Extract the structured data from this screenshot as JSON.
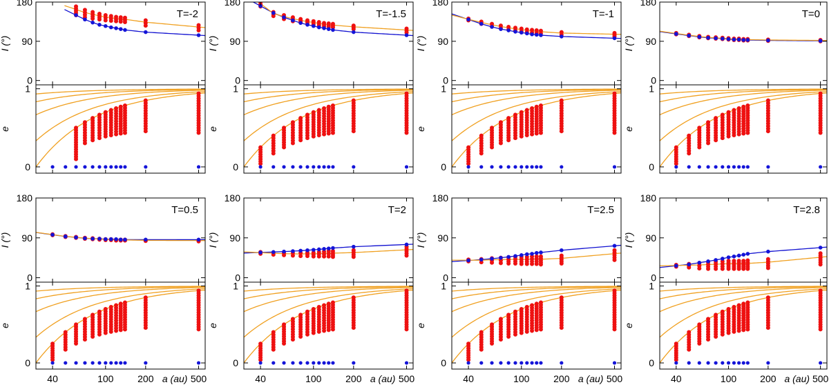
{
  "chart_data": {
    "type": "scatter",
    "colors": {
      "blue": "#1414d8",
      "red": "#ee1111",
      "orange": "#f0a020"
    },
    "shared": {
      "xscale": "log",
      "xlim": [
        30,
        560
      ],
      "xticks": [
        40,
        100,
        200,
        500
      ],
      "xtick_labels": [
        "40",
        "100",
        "200",
        "500"
      ],
      "xlabel": "a (au)",
      "top_ylabel": "I (°)",
      "top_ylim": [
        -10,
        180
      ],
      "top_yticks": [
        0,
        90,
        180
      ],
      "top_ytick_labels": [
        "0",
        "90",
        "180"
      ],
      "bottom_ylabel": "e",
      "bottom_ylim": [
        -0.08,
        1.05
      ],
      "bottom_yticks": [
        0,
        1
      ],
      "bottom_ytick_labels": [
        "0",
        "1"
      ],
      "a_points": [
        40,
        50,
        60,
        70,
        80,
        90,
        100,
        110,
        120,
        130,
        140,
        200,
        500
      ],
      "e_circular": 0,
      "orange_envelope_q": [
        30,
        20,
        10,
        5,
        2
      ]
    },
    "panels": [
      {
        "label": "T=-2",
        "e_start_index": 2,
        "blue_I": [
          null,
          null,
          150,
          140,
          133,
          128,
          125,
          122,
          120,
          118,
          116,
          111,
          104
        ],
        "red_I": [
          null,
          null,
          [
            150,
            170
          ],
          [
            145,
            162
          ],
          [
            142,
            157
          ],
          [
            140,
            153
          ],
          [
            138,
            150
          ],
          [
            137,
            148
          ],
          [
            136,
            146
          ],
          [
            135,
            145
          ],
          [
            134,
            144
          ],
          [
            126,
            138
          ],
          [
            115,
            127
          ]
        ]
      },
      {
        "label": "T=-1.5",
        "e_start_index": 0,
        "blue_I": [
          171,
          155,
          145,
          138,
          132,
          128,
          125,
          122,
          120,
          118,
          116,
          111,
          104
        ],
        "red_I": [
          [
            170,
            180
          ],
          [
            148,
            157
          ],
          [
            141,
            150
          ],
          [
            136,
            145
          ],
          [
            133,
            141
          ],
          [
            130,
            138
          ],
          [
            128,
            136
          ],
          [
            126,
            134
          ],
          [
            124,
            132
          ],
          [
            123,
            131
          ],
          [
            122,
            130
          ],
          [
            118,
            126
          ],
          [
            110,
            119
          ]
        ]
      },
      {
        "label": "T=-1",
        "e_start_index": 0,
        "blue_I": [
          140,
          130,
          123,
          118,
          115,
          112,
          110,
          108,
          106,
          105,
          104,
          101,
          97
        ],
        "red_I": [
          [
            138,
            142
          ],
          [
            130,
            135
          ],
          [
            124,
            130
          ],
          [
            120,
            126
          ],
          [
            117,
            123
          ],
          [
            115,
            121
          ],
          [
            113,
            119
          ],
          [
            111,
            117
          ],
          [
            110,
            116
          ],
          [
            109,
            115
          ],
          [
            108,
            114
          ],
          [
            105,
            111
          ],
          [
            101,
            109
          ]
        ]
      },
      {
        "label": "T=0",
        "e_start_index": 0,
        "blue_I": [
          107,
          103,
          100,
          98,
          97,
          96,
          95,
          94,
          94,
          93,
          93,
          92,
          91
        ],
        "red_I": [
          [
            106,
            109
          ],
          [
            102,
            105
          ],
          [
            99,
            102
          ],
          [
            97,
            100
          ],
          [
            96,
            99
          ],
          [
            95,
            98
          ],
          [
            94,
            97
          ],
          [
            93,
            96
          ],
          [
            93,
            96
          ],
          [
            92,
            95
          ],
          [
            92,
            95
          ],
          [
            91,
            94
          ],
          [
            90,
            93
          ]
        ]
      },
      {
        "label": "T=0.5",
        "e_start_index": 0,
        "blue_I": [
          97,
          93,
          91,
          89,
          88,
          88,
          87,
          87,
          87,
          86,
          86,
          86,
          86
        ],
        "red_I": [
          [
            96,
            98
          ],
          [
            92,
            94
          ],
          [
            90,
            92
          ],
          [
            88,
            90
          ],
          [
            87,
            89
          ],
          [
            86,
            88
          ],
          [
            85,
            87
          ],
          [
            85,
            87
          ],
          [
            84,
            86
          ],
          [
            84,
            86
          ],
          [
            84,
            86
          ],
          [
            83,
            85
          ],
          [
            82,
            85
          ]
        ]
      },
      {
        "label": "T=2",
        "e_start_index": 0,
        "blue_I": [
          57,
          58,
          59,
          60,
          61,
          62,
          63,
          64,
          65,
          66,
          67,
          70,
          75
        ],
        "red_I": [
          [
            54,
            58
          ],
          [
            52,
            57
          ],
          [
            51,
            56
          ],
          [
            50,
            56
          ],
          [
            49,
            56
          ],
          [
            49,
            57
          ],
          [
            48,
            57
          ],
          [
            48,
            58
          ],
          [
            48,
            59
          ],
          [
            48,
            60
          ],
          [
            47,
            60
          ],
          [
            47,
            62
          ],
          [
            50,
            70
          ]
        ]
      },
      {
        "label": "T=2.5",
        "e_start_index": 0,
        "blue_I": [
          39,
          41,
          43,
          45,
          47,
          49,
          51,
          53,
          54,
          56,
          57,
          62,
          72
        ],
        "red_I": [
          [
            37,
            41
          ],
          [
            35,
            42
          ],
          [
            34,
            44
          ],
          [
            33,
            45
          ],
          [
            32,
            46
          ],
          [
            32,
            47
          ],
          [
            31,
            47
          ],
          [
            31,
            47
          ],
          [
            31,
            48
          ],
          [
            31,
            48
          ],
          [
            30,
            48
          ],
          [
            32,
            50
          ],
          [
            40,
            62
          ]
        ]
      },
      {
        "label": "T=2.8",
        "e_start_index": 0,
        "blue_I": [
          27,
          30,
          34,
          37,
          40,
          43,
          46,
          48,
          50,
          52,
          54,
          59,
          68
        ],
        "red_I": [
          [
            25,
            29
          ],
          [
            23,
            31
          ],
          [
            21,
            33
          ],
          [
            20,
            35
          ],
          [
            20,
            36
          ],
          [
            20,
            37
          ],
          [
            20,
            38
          ],
          [
            20,
            38
          ],
          [
            20,
            38
          ],
          [
            20,
            38
          ],
          [
            20,
            39
          ],
          [
            22,
            42
          ],
          [
            30,
            55
          ]
        ]
      }
    ]
  }
}
